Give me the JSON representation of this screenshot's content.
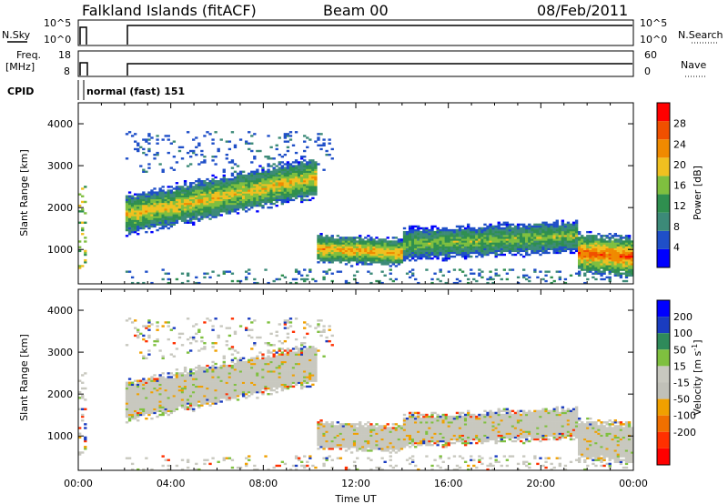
{
  "header": {
    "station": "Falkland Islands (fitACF)",
    "beam": "Beam 00",
    "date": "08/Feb/2011"
  },
  "top_panels": {
    "nsky_label": "N.Sky",
    "nsky_ticks": [
      "10^5",
      "10^0"
    ],
    "nsearch_label": "N.Search",
    "nsearch_ticks": [
      "10^5",
      "10^0"
    ],
    "freq_label_1": "Freq.",
    "freq_label_2": "[MHz]",
    "freq_ticks": [
      "18",
      "8"
    ],
    "nave_label": "Nave",
    "nave_ticks": [
      "60",
      "0"
    ],
    "cpid_label": "CPID",
    "cpid_value": "normal (fast) 151"
  },
  "colors": {
    "power_scale": [
      "#0000ff",
      "#1f4fc8",
      "#3c8a78",
      "#2f8f4f",
      "#7fbf3f",
      "#f0c020",
      "#f08a00",
      "#f05000",
      "#ff0000"
    ],
    "velocity_scale": [
      "#0000ff",
      "#1a3cc0",
      "#2f8a5a",
      "#7fc03f",
      "#c8c8bf",
      "#c0c0b8",
      "#f0a000",
      "#f07000",
      "#ff3000",
      "#ff0000"
    ],
    "ground_scatter": "#c8c8bf"
  },
  "chart_data": [
    {
      "type": "heatmap",
      "parameter": "power",
      "ylabel": "Slant Range [km]",
      "x_ticks": [
        "00:00",
        "04:00",
        "08:00",
        "12:00",
        "16:00",
        "20:00",
        "00:00"
      ],
      "y_ticks": [
        1000,
        2000,
        3000,
        4000
      ],
      "ylim": [
        180,
        4500
      ],
      "xlim_hours": [
        0,
        24
      ],
      "colorbar_label": "Power [dB]",
      "colorbar_ticks": [
        4,
        8,
        12,
        16,
        20,
        24,
        28
      ],
      "data_gap_hours": [
        0.3,
        2.0
      ],
      "echo_bands": [
        {
          "t_start": 2.0,
          "t_end": 10.3,
          "range_center": [
            1800,
            2700
          ],
          "range_width": 500,
          "level": 20
        },
        {
          "t_start": 10.3,
          "t_end": 14.0,
          "range_center": [
            1000,
            900
          ],
          "range_width": 350,
          "level": 22
        },
        {
          "t_start": 14.0,
          "t_end": 21.5,
          "range_center": [
            1100,
            1300
          ],
          "range_width": 400,
          "level": 16
        },
        {
          "t_start": 21.5,
          "t_end": 24.0,
          "range_center": [
            900,
            800
          ],
          "range_width": 500,
          "level": 26
        }
      ]
    },
    {
      "type": "heatmap",
      "parameter": "velocity",
      "ylabel": "Slant Range [km]",
      "xlabel": "Time UT",
      "x_ticks": [
        "00:00",
        "04:00",
        "08:00",
        "12:00",
        "16:00",
        "20:00",
        "00:00"
      ],
      "y_ticks": [
        1000,
        2000,
        3000,
        4000
      ],
      "ylim": [
        180,
        4500
      ],
      "xlim_hours": [
        0,
        24
      ],
      "colorbar_label": "Velocity [m s",
      "colorbar_label_sup": "-1",
      "colorbar_label_end": "]",
      "colorbar_ticks": [
        200,
        100,
        50,
        15,
        -15,
        -50,
        -100,
        -200
      ]
    }
  ]
}
